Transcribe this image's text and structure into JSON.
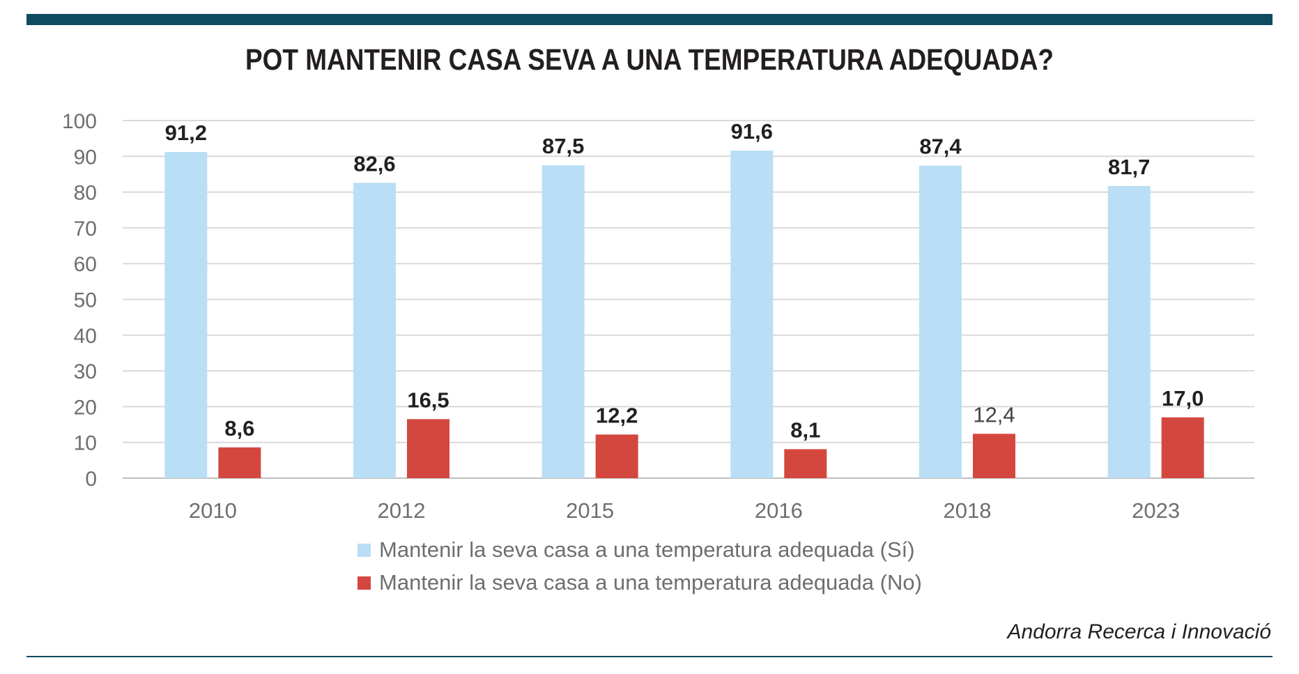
{
  "colors": {
    "header_bar": "#0f4b5f",
    "series_yes": "#b9def5",
    "series_no": "#d4473f",
    "gridline": "#d9d9d9",
    "axis_text": "#6d6e71",
    "label_text": "#231f20"
  },
  "source": "Andorra Recerca i Innovació",
  "chart_data": {
    "type": "bar",
    "title": "POT MANTENIR CASA SEVA A UNA TEMPERATURA ADEQUADA?",
    "xlabel": "",
    "ylabel": "",
    "ylim": [
      0,
      100
    ],
    "yticks": [
      0,
      10,
      20,
      30,
      40,
      50,
      60,
      70,
      80,
      90,
      100
    ],
    "grid": true,
    "legend_position": "bottom",
    "categories": [
      "2010",
      "2012",
      "2015",
      "2016",
      "2018",
      "2023"
    ],
    "series": [
      {
        "name": "Mantenir la seva casa a una temperatura adequada (Sí)",
        "values": [
          91.2,
          82.6,
          87.5,
          91.6,
          87.4,
          81.7
        ],
        "labels": [
          "91,2",
          "82,6",
          "87,5",
          "91,6",
          "87,4",
          "81,7"
        ],
        "color": "#b9def5"
      },
      {
        "name": "Mantenir la seva casa a una temperatura adequada (No)",
        "values": [
          8.6,
          16.5,
          12.2,
          8.1,
          12.4,
          17.0
        ],
        "labels": [
          "8,6",
          "16,5",
          "12,2",
          "8,1",
          "12,4",
          "17,0"
        ],
        "color": "#d4473f"
      }
    ]
  }
}
